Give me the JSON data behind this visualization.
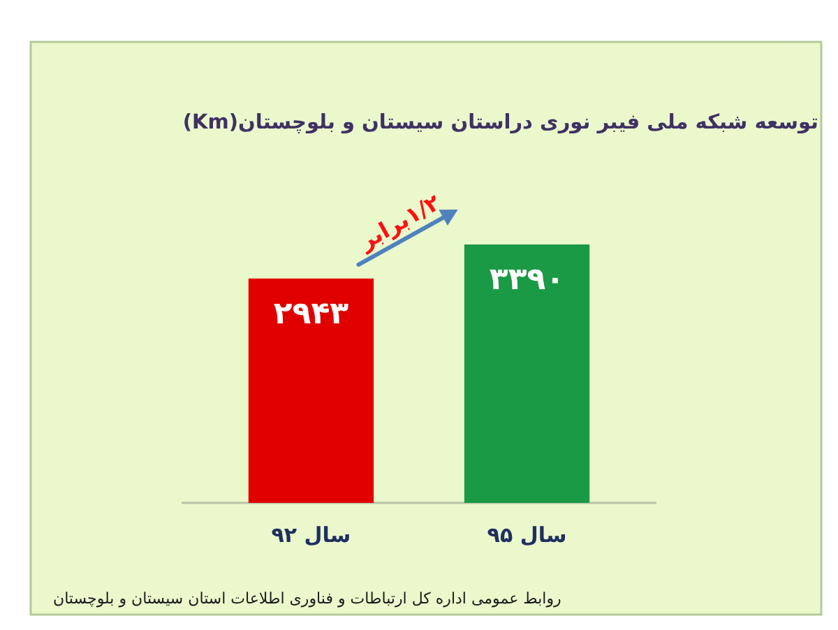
{
  "chart_data": {
    "type": "bar",
    "title": "توسعه شبکه ملی فیبر نوری دراستان سیستان و بلوچستان(Km)",
    "categories": [
      "سال ۹۲",
      "سال ۹۵"
    ],
    "values": [
      2943,
      3390
    ],
    "colors": [
      "#e00000",
      "#1a9a45"
    ],
    "value_labels": [
      "۲۹۴۳",
      "۳۳۹۰"
    ],
    "tick_labels": "x",
    "annotations": [
      "۱/۲برابر",
      "روابط عمومی اداره کل ارتباطات و فناوری اطلاعات استان سیستان و بلوچستان"
    ]
  }
}
